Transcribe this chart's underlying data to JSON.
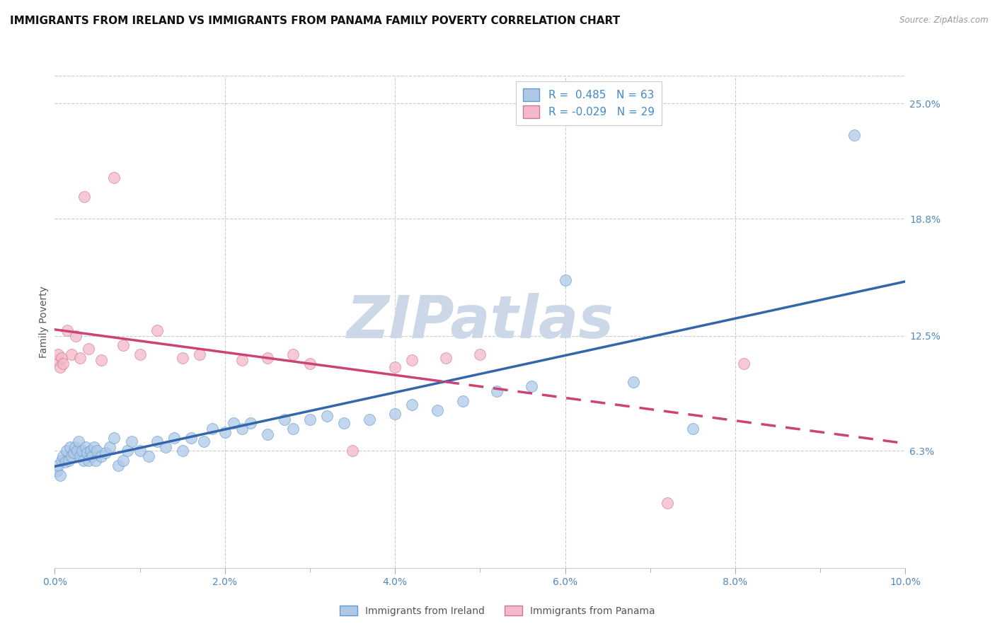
{
  "title": "IMMIGRANTS FROM IRELAND VS IMMIGRANTS FROM PANAMA FAMILY POVERTY CORRELATION CHART",
  "source": "Source: ZipAtlas.com",
  "ylabel": "Family Poverty",
  "xlim": [
    0.0,
    0.1
  ],
  "ylim": [
    0.0,
    0.265
  ],
  "yticks": [
    0.063,
    0.125,
    0.188,
    0.25
  ],
  "ytick_labels": [
    "6.3%",
    "12.5%",
    "18.8%",
    "25.0%"
  ],
  "xtick_vals": [
    0.0,
    0.02,
    0.04,
    0.06,
    0.08,
    0.1
  ],
  "xtick_labels": [
    "0.0%",
    "2.0%",
    "4.0%",
    "6.0%",
    "8.0%",
    "10.0%"
  ],
  "ireland_color": "#aec9e8",
  "ireland_edge_color": "#6699cc",
  "panama_color": "#f5b8c8",
  "panama_edge_color": "#cc7799",
  "ireland_line_color": "#3366aa",
  "panama_line_color": "#cc4477",
  "R_ireland": 0.485,
  "N_ireland": 63,
  "R_panama": -0.029,
  "N_panama": 29,
  "ireland_x": [
    0.0002,
    0.0004,
    0.0006,
    0.0008,
    0.001,
    0.0012,
    0.0014,
    0.0016,
    0.0018,
    0.002,
    0.0022,
    0.0024,
    0.0026,
    0.0028,
    0.003,
    0.0032,
    0.0034,
    0.0036,
    0.0038,
    0.004,
    0.0042,
    0.0044,
    0.0046,
    0.0048,
    0.005,
    0.0055,
    0.006,
    0.0065,
    0.007,
    0.0075,
    0.008,
    0.0085,
    0.009,
    0.01,
    0.011,
    0.012,
    0.013,
    0.014,
    0.015,
    0.016,
    0.0175,
    0.0185,
    0.02,
    0.021,
    0.022,
    0.023,
    0.025,
    0.027,
    0.028,
    0.03,
    0.032,
    0.034,
    0.037,
    0.04,
    0.042,
    0.045,
    0.048,
    0.052,
    0.056,
    0.06,
    0.068,
    0.075,
    0.094
  ],
  "ireland_y": [
    0.052,
    0.055,
    0.05,
    0.058,
    0.06,
    0.057,
    0.063,
    0.058,
    0.065,
    0.06,
    0.062,
    0.065,
    0.063,
    0.068,
    0.06,
    0.063,
    0.058,
    0.065,
    0.062,
    0.058,
    0.063,
    0.06,
    0.065,
    0.058,
    0.063,
    0.06,
    0.062,
    0.065,
    0.07,
    0.055,
    0.058,
    0.063,
    0.068,
    0.063,
    0.06,
    0.068,
    0.065,
    0.07,
    0.063,
    0.07,
    0.068,
    0.075,
    0.073,
    0.078,
    0.075,
    0.078,
    0.072,
    0.08,
    0.075,
    0.08,
    0.082,
    0.078,
    0.08,
    0.083,
    0.088,
    0.085,
    0.09,
    0.095,
    0.098,
    0.155,
    0.1,
    0.075,
    0.233
  ],
  "panama_x": [
    0.0002,
    0.0004,
    0.0006,
    0.0008,
    0.001,
    0.0015,
    0.002,
    0.0025,
    0.003,
    0.0035,
    0.004,
    0.0055,
    0.007,
    0.008,
    0.01,
    0.012,
    0.015,
    0.017,
    0.022,
    0.025,
    0.028,
    0.03,
    0.035,
    0.04,
    0.042,
    0.046,
    0.05,
    0.072,
    0.081
  ],
  "panama_y": [
    0.112,
    0.115,
    0.108,
    0.113,
    0.11,
    0.128,
    0.115,
    0.125,
    0.113,
    0.2,
    0.118,
    0.112,
    0.21,
    0.12,
    0.115,
    0.128,
    0.113,
    0.115,
    0.112,
    0.113,
    0.115,
    0.11,
    0.063,
    0.108,
    0.112,
    0.113,
    0.115,
    0.035,
    0.11
  ],
  "background_color": "#ffffff",
  "grid_color": "#cccccc",
  "title_fontsize": 11,
  "axis_label_fontsize": 10,
  "tick_fontsize": 10,
  "watermark_text": "ZIPatlas",
  "watermark_color": "#ccd8e8",
  "watermark_fontsize": 60
}
